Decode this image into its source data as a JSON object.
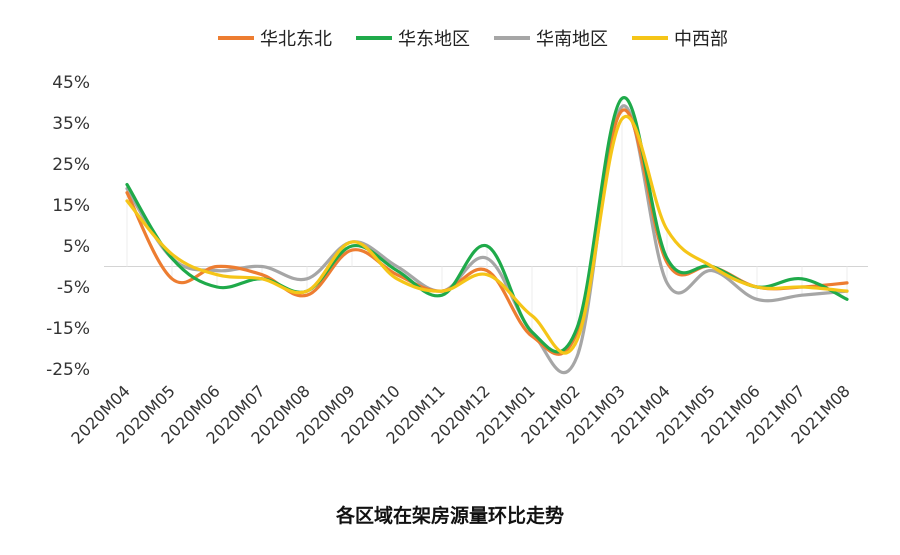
{
  "chart_data": {
    "type": "line",
    "title": "各区域在架房源量环比走势",
    "categories": [
      "2020M04",
      "2020M05",
      "2020M06",
      "2020M07",
      "2020M08",
      "2020M09",
      "2020M10",
      "2020M11",
      "2020M12",
      "2021M01",
      "2021M02",
      "2021M03",
      "2021M04",
      "2021M05",
      "2021M06",
      "2021M07",
      "2021M08"
    ],
    "ylim": [
      -25,
      45
    ],
    "yticks": [
      45,
      35,
      25,
      15,
      5,
      -5,
      -15,
      -25
    ],
    "ytick_labels": [
      "45%",
      "35%",
      "25%",
      "15%",
      "5%",
      "-5%",
      "-15%",
      "-25%"
    ],
    "grid": false,
    "legend_position": "top",
    "series": [
      {
        "name": "华北东北",
        "color": "#ED7D31",
        "values": [
          18,
          -3,
          0,
          -2,
          -7,
          4,
          -2,
          -6,
          -1,
          -17,
          -16,
          38,
          1,
          0,
          -5,
          -5,
          -4
        ]
      },
      {
        "name": "华东地区",
        "color": "#1FAA4A",
        "values": [
          20,
          2,
          -5,
          -3,
          -6,
          5,
          -1,
          -7,
          5,
          -16,
          -15,
          41,
          2,
          0,
          -5,
          -3,
          -8
        ]
      },
      {
        "name": "华南地区",
        "color": "#A6A6A6",
        "values": [
          19,
          2,
          -1,
          0,
          -3,
          6,
          0,
          -6,
          2,
          -16,
          -22,
          39,
          -4,
          -1,
          -8,
          -7,
          -6
        ]
      },
      {
        "name": "中西部",
        "color": "#F5C518",
        "values": [
          16,
          3,
          -2,
          -3,
          -6,
          6,
          -3,
          -6,
          -2,
          -12,
          -18,
          36,
          9,
          0,
          -5,
          -5,
          -6
        ]
      }
    ]
  }
}
